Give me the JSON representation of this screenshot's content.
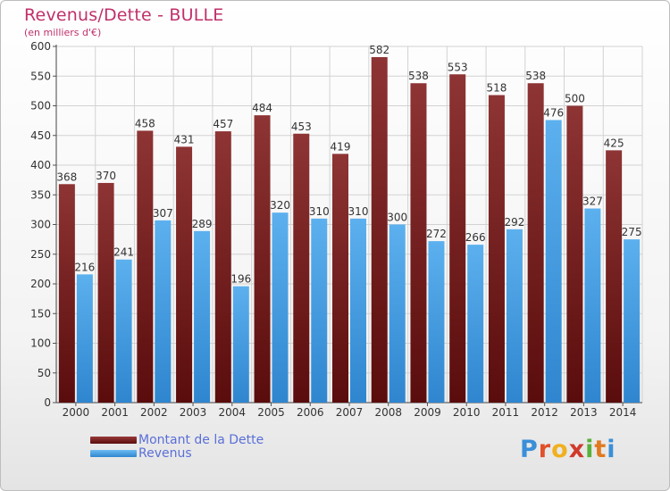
{
  "header": {
    "title": "Revenus/Dette - BULLE",
    "subtitle": "(en milliers d'€)"
  },
  "legend": {
    "items": [
      {
        "label": "Montant de la Dette",
        "color": "#7a1f1f"
      },
      {
        "label": "Revenus",
        "color": "#4aa3e8"
      }
    ]
  },
  "logo": {
    "letters": [
      {
        "ch": "P",
        "color": "#3a8fd8"
      },
      {
        "ch": "r",
        "color": "#e0502a"
      },
      {
        "ch": "o",
        "color": "#f0b020"
      },
      {
        "ch": "x",
        "color": "#d03a2a"
      },
      {
        "ch": "i",
        "color": "#5ab03a"
      },
      {
        "ch": "t",
        "color": "#e07a20"
      },
      {
        "ch": "i",
        "color": "#3a8fd8"
      }
    ]
  },
  "chart_data": {
    "type": "bar",
    "title": "Revenus/Dette - BULLE",
    "subtitle": "(en milliers d'€)",
    "xlabel": "",
    "ylabel": "",
    "ylim": [
      0,
      600
    ],
    "yticks": [
      0,
      50,
      100,
      150,
      200,
      250,
      300,
      350,
      400,
      450,
      500,
      550,
      600
    ],
    "grid": true,
    "legend_position": "bottom-left",
    "categories": [
      "2000",
      "2001",
      "2002",
      "2003",
      "2004",
      "2005",
      "2006",
      "2007",
      "2008",
      "2009",
      "2010",
      "2011",
      "2012",
      "2013",
      "2014"
    ],
    "series": [
      {
        "name": "Montant de la Dette",
        "color": "#7a1f1f",
        "values": [
          368,
          370,
          458,
          431,
          457,
          484,
          453,
          419,
          582,
          538,
          553,
          518,
          538,
          500,
          425
        ]
      },
      {
        "name": "Revenus",
        "color": "#4aa3e8",
        "values": [
          216,
          241,
          307,
          289,
          196,
          320,
          310,
          310,
          300,
          272,
          266,
          292,
          476,
          327,
          275
        ]
      }
    ]
  }
}
